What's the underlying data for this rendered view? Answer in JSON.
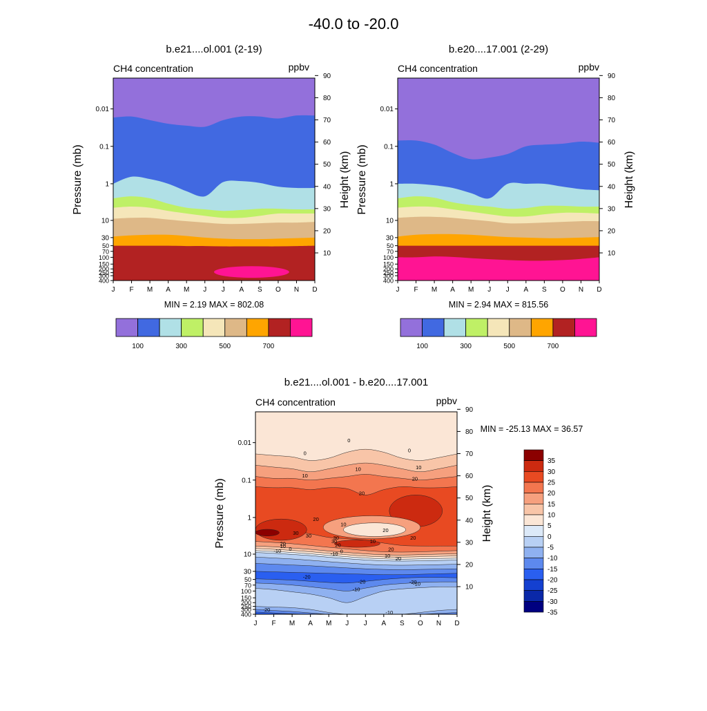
{
  "figure": {
    "title": "-40.0 to -20.0",
    "variable": "CH4 concentration",
    "units": "ppbv"
  },
  "chart_data": [
    {
      "type": "heatmap",
      "title": "b.e21....ol.001 (2-19)",
      "variable": "CH4 concentration",
      "units": "ppbv",
      "xlabel": "",
      "ylabel": "Pressure (mb)",
      "ylabel_right": "Height (km)",
      "months": [
        "J",
        "F",
        "M",
        "A",
        "M",
        "J",
        "J",
        "A",
        "S",
        "O",
        "N",
        "D"
      ],
      "pressure_ticks": [
        "0.01",
        "0.1",
        "1",
        "10",
        "30",
        "50",
        "70",
        "100",
        "150",
        "200",
        "250",
        "300",
        "400"
      ],
      "height_ticks": [
        "10",
        "20",
        "30",
        "40",
        "50",
        "60",
        "70",
        "80",
        "90"
      ],
      "ylim_mb": [
        400,
        0.0015
      ],
      "min_label": "MIN =   2.19  MAX = 802.08",
      "min": 2.19,
      "max": 802.08,
      "levels": [
        100,
        200,
        300,
        400,
        500,
        600,
        700,
        800
      ],
      "bands": [
        {
          "color": "#9370db",
          "lower_mb": [
            0.017,
            0.016,
            0.02,
            0.025,
            0.028,
            0.03,
            0.02,
            0.016,
            0.016,
            0.018,
            0.015,
            0.015
          ]
        },
        {
          "color": "#4169e1",
          "lower_mb": [
            1.0,
            0.65,
            0.75,
            1.0,
            1.6,
            2.2,
            0.9,
            0.85,
            0.95,
            1.2,
            1.3,
            1.3
          ]
        },
        {
          "color": "#b0e0e6",
          "lower_mb": [
            2.5,
            2.2,
            2.5,
            3.5,
            4.5,
            5.0,
            5.5,
            5.2,
            4.8,
            4.8,
            5.0,
            5.0
          ]
        },
        {
          "color": "#bff066",
          "lower_mb": [
            4.5,
            4.2,
            4.5,
            5.5,
            6.5,
            7.5,
            8.5,
            8.5,
            7.5,
            6.5,
            6.5,
            6.5
          ]
        },
        {
          "color": "#f5e6b9",
          "lower_mb": [
            9.0,
            8.5,
            8.5,
            9.5,
            10.5,
            11.5,
            12.5,
            12.5,
            12.0,
            11.5,
            11.5,
            11.0
          ]
        },
        {
          "color": "#deb887",
          "lower_mb": [
            28,
            26,
            25,
            25,
            27,
            30,
            32,
            33,
            33,
            32,
            31,
            30
          ]
        },
        {
          "color": "#ffa500",
          "lower_mb": [
            50,
            50,
            50,
            50,
            51,
            51,
            52,
            52,
            52,
            52,
            51,
            50
          ]
        },
        {
          "color": "#b22222",
          "lower_mb": [
            400,
            400,
            400,
            400,
            400,
            400,
            400,
            400,
            400,
            400,
            400,
            400
          ]
        }
      ],
      "cores": [
        {
          "color": "#ff1493",
          "month_from": 5.5,
          "month_to": 9.6,
          "center_mb": 240,
          "top_mb": 170,
          "bottom_mb": 340
        }
      ]
    },
    {
      "type": "heatmap",
      "title": "b.e20....17.001 (2-29)",
      "variable": "CH4 concentration",
      "units": "ppbv",
      "xlabel": "",
      "ylabel": "Pressure (mb)",
      "ylabel_right": "Height (km)",
      "months": [
        "J",
        "F",
        "M",
        "A",
        "M",
        "J",
        "J",
        "A",
        "S",
        "O",
        "N",
        "D"
      ],
      "pressure_ticks": [
        "0.01",
        "0.1",
        "1",
        "10",
        "30",
        "50",
        "70",
        "100",
        "150",
        "200",
        "250",
        "300",
        "400"
      ],
      "height_ticks": [
        "10",
        "20",
        "30",
        "40",
        "50",
        "60",
        "70",
        "80",
        "90"
      ],
      "ylim_mb": [
        400,
        0.0015
      ],
      "min_label": "MIN =   2.94  MAX = 815.56",
      "min": 2.94,
      "max": 815.56,
      "levels": [
        100,
        200,
        300,
        400,
        500,
        600,
        700,
        800
      ],
      "bands": [
        {
          "color": "#9370db",
          "lower_mb": [
            0.07,
            0.07,
            0.09,
            0.15,
            0.22,
            0.2,
            0.16,
            0.1,
            0.09,
            0.085,
            0.075,
            0.08
          ]
        },
        {
          "color": "#4169e1",
          "lower_mb": [
            1.0,
            1.0,
            1.1,
            1.3,
            1.8,
            2.5,
            1.0,
            1.0,
            1.0,
            1.2,
            1.4,
            1.5
          ]
        },
        {
          "color": "#b0e0e6",
          "lower_mb": [
            2.5,
            2.2,
            2.4,
            3.2,
            3.8,
            4.2,
            4.8,
            4.6,
            4.0,
            4.0,
            4.2,
            4.2
          ]
        },
        {
          "color": "#bff066",
          "lower_mb": [
            4.5,
            4.2,
            4.3,
            5.0,
            5.8,
            6.8,
            7.8,
            7.8,
            6.8,
            6.2,
            6.2,
            6.5
          ]
        },
        {
          "color": "#f5e6b9",
          "lower_mb": [
            8.5,
            8.0,
            8.0,
            8.5,
            9.5,
            10.5,
            12.0,
            12.0,
            11.5,
            11.0,
            10.5,
            10.5
          ]
        },
        {
          "color": "#deb887",
          "lower_mb": [
            28,
            25,
            24,
            24,
            25,
            27,
            29,
            30,
            31,
            31,
            30,
            29
          ]
        },
        {
          "color": "#ffa500",
          "lower_mb": [
            50,
            50,
            50,
            50,
            50,
            50,
            50,
            50,
            50,
            50,
            50,
            50
          ]
        },
        {
          "color": "#b22222",
          "lower_mb": [
            100,
            100,
            95,
            98,
            105,
            112,
            118,
            122,
            122,
            118,
            110,
            100
          ]
        },
        {
          "color": "#ff1493",
          "lower_mb": [
            400,
            400,
            400,
            400,
            400,
            400,
            400,
            400,
            400,
            400,
            400,
            400
          ]
        }
      ],
      "cores": []
    },
    {
      "type": "heatmap",
      "title": "b.e21....ol.001 - b.e20....17.001",
      "variable": "CH4 concentration",
      "units": "ppbv",
      "xlabel": "",
      "ylabel": "Pressure (mb)",
      "ylabel_right": "Height (km)",
      "months": [
        "J",
        "F",
        "M",
        "A",
        "M",
        "J",
        "J",
        "A",
        "S",
        "O",
        "N",
        "D"
      ],
      "pressure_ticks": [
        "0.01",
        "0.1",
        "1",
        "10",
        "30",
        "50",
        "70",
        "100",
        "150",
        "200",
        "250",
        "300",
        "400"
      ],
      "height_ticks": [
        "10",
        "20",
        "30",
        "40",
        "50",
        "60",
        "70",
        "80",
        "90"
      ],
      "ylim_mb": [
        400,
        0.0015
      ],
      "min_label": "MIN = -25.13  MAX =  36.57",
      "min": -25.13,
      "max": 36.57,
      "background_color": "#dce9f8",
      "bands": [
        {
          "color": "#fbe6d6",
          "lower_mb": [
            0.02,
            0.022,
            0.024,
            0.03,
            0.026,
            0.018,
            0.015,
            0.018,
            0.026,
            0.03,
            0.025,
            0.02
          ]
        },
        {
          "color": "#f8c5a8",
          "lower_mb": [
            0.04,
            0.045,
            0.05,
            0.06,
            0.05,
            0.04,
            0.035,
            0.04,
            0.05,
            0.06,
            0.05,
            0.04
          ]
        },
        {
          "color": "#f6a07e",
          "lower_mb": [
            0.08,
            0.09,
            0.09,
            0.1,
            0.09,
            0.08,
            0.07,
            0.08,
            0.09,
            0.1,
            0.09,
            0.08
          ]
        },
        {
          "color": "#f3764f",
          "lower_mb": [
            0.15,
            0.16,
            0.16,
            0.18,
            0.16,
            0.17,
            0.25,
            0.18,
            0.15,
            0.16,
            0.16,
            0.15
          ]
        },
        {
          "color": "#e84a22",
          "lower_mb": [
            2.0,
            2.2,
            2.4,
            2.8,
            3.5,
            3.8,
            4.2,
            5.0,
            5.8,
            6.0,
            6.0,
            6.0
          ]
        },
        {
          "color": "#f3764f",
          "lower_mb": [
            4.5,
            4.8,
            5.2,
            5.8,
            6.5,
            7.2,
            8.0,
            8.6,
            8.8,
            8.6,
            8.3,
            8.0
          ]
        },
        {
          "color": "#f6a07e",
          "lower_mb": [
            6.0,
            6.3,
            6.8,
            7.4,
            8.2,
            9.0,
            9.8,
            10.4,
            10.6,
            10.3,
            10.0,
            9.8
          ]
        },
        {
          "color": "#f8c5a8",
          "lower_mb": [
            7.0,
            7.4,
            7.9,
            8.6,
            9.5,
            10.4,
            11.3,
            11.9,
            12.1,
            11.8,
            11.5,
            11.2
          ]
        },
        {
          "color": "#fbe6d6",
          "lower_mb": [
            8.0,
            8.4,
            9.0,
            9.8,
            10.8,
            11.8,
            12.8,
            13.5,
            13.8,
            13.5,
            13.2,
            12.9
          ]
        },
        {
          "color": "#dce9f8",
          "lower_mb": [
            9.0,
            9.5,
            10.2,
            11.0,
            12.2,
            13.4,
            14.5,
            15.3,
            15.6,
            15.3,
            15.0,
            14.6
          ]
        },
        {
          "color": "#b8d0f4",
          "lower_mb": [
            12.0,
            12.8,
            13.6,
            14.8,
            16.2,
            17.6,
            19.0,
            20.0,
            20.3,
            20.0,
            19.6,
            19.0
          ]
        },
        {
          "color": "#8fb1f0",
          "lower_mb": [
            18.0,
            19.0,
            20.0,
            21.0,
            22.5,
            24.0,
            25.5,
            26.5,
            27.0,
            26.5,
            26.0,
            25.5
          ]
        },
        {
          "color": "#5d89ee",
          "lower_mb": [
            30,
            31,
            32,
            33,
            34,
            35,
            36,
            37,
            37,
            36,
            35,
            34
          ]
        },
        {
          "color": "#2a5ff0",
          "lower_mb": [
            48,
            50,
            52,
            56,
            60,
            62,
            56,
            50,
            46,
            44,
            44,
            45
          ]
        },
        {
          "color": "#5d89ee",
          "lower_mb": [
            62,
            65,
            70,
            78,
            88,
            100,
            84,
            70,
            64,
            60,
            58,
            58
          ]
        },
        {
          "color": "#8fb1f0",
          "lower_mb": [
            85,
            92,
            105,
            120,
            150,
            200,
            140,
            100,
            88,
            82,
            78,
            78
          ]
        },
        {
          "color": "#b8d0f4",
          "lower_mb": [
            250,
            260,
            270,
            300,
            360,
            400,
            400,
            400,
            400,
            360,
            320,
            300
          ]
        },
        {
          "color": "#8fb1f0",
          "lower_mb": [
            300,
            320,
            340,
            370,
            400,
            400,
            400,
            400,
            400,
            400,
            380,
            360
          ]
        },
        {
          "color": "#5d89ee",
          "lower_mb": [
            350,
            370,
            390,
            400,
            400,
            400,
            400,
            400,
            400,
            400,
            400,
            400
          ]
        },
        {
          "color": "#2a5ff0",
          "lower_mb": [
            400,
            400,
            400,
            400,
            400,
            400,
            400,
            400,
            400,
            400,
            400,
            400
          ]
        }
      ],
      "cores": [
        {
          "color": "#cc2a10",
          "month_from": 7.3,
          "month_to": 10.2,
          "center_mb": 0.7,
          "top_mb": 0.25,
          "bottom_mb": 1.8
        },
        {
          "color": "#cc2a10",
          "month_from": 0.0,
          "month_to": 2.8,
          "center_mb": 2.2,
          "top_mb": 1.1,
          "bottom_mb": 4.2
        },
        {
          "color": "#8b0000",
          "month_from": 0.0,
          "month_to": 1.3,
          "center_mb": 2.6,
          "top_mb": 2.1,
          "bottom_mb": 3.2
        },
        {
          "color": "#f6a07e",
          "month_from": 3.7,
          "month_to": 9.0,
          "center_mb": 1.9,
          "top_mb": 0.9,
          "bottom_mb": 3.8
        },
        {
          "color": "#fbe6d6",
          "month_from": 4.8,
          "month_to": 8.2,
          "center_mb": 2.3,
          "top_mb": 1.4,
          "bottom_mb": 3.3
        },
        {
          "color": "#cc2a10",
          "month_from": 4.3,
          "month_to": 6.8,
          "center_mb": 5.2,
          "top_mb": 4.1,
          "bottom_mb": 6.5
        }
      ],
      "contour_labels": [
        {
          "text": "0",
          "month": 5.1,
          "mb": 0.0085
        },
        {
          "text": "0",
          "month": 8.4,
          "mb": 0.016
        },
        {
          "text": "0",
          "month": 2.7,
          "mb": 0.019
        },
        {
          "text": "10",
          "month": 2.7,
          "mb": 0.075
        },
        {
          "text": "10",
          "month": 5.6,
          "mb": 0.05
        },
        {
          "text": "10",
          "month": 8.9,
          "mb": 0.045
        },
        {
          "text": "20",
          "month": 8.7,
          "mb": 0.09
        },
        {
          "text": "20",
          "month": 5.8,
          "mb": 0.22
        },
        {
          "text": "20",
          "month": 3.3,
          "mb": 1.1
        },
        {
          "text": "10",
          "month": 4.8,
          "mb": 1.5
        },
        {
          "text": "20",
          "month": 7.1,
          "mb": 2.2
        },
        {
          "text": "20",
          "month": 8.6,
          "mb": 3.5
        },
        {
          "text": "30",
          "month": 2.2,
          "mb": 2.6
        },
        {
          "text": "30",
          "month": 2.9,
          "mb": 3.1
        },
        {
          "text": "30",
          "month": 4.4,
          "mb": 3.5
        },
        {
          "text": "10",
          "month": 6.4,
          "mb": 4.4
        },
        {
          "text": "20",
          "month": 1.5,
          "mb": 5.1
        },
        {
          "text": "10",
          "month": 1.5,
          "mb": 6.0
        },
        {
          "text": "0",
          "month": 1.9,
          "mb": 7.0
        },
        {
          "text": "-10",
          "month": 1.2,
          "mb": 8.0
        },
        {
          "text": "20",
          "month": 4.5,
          "mb": 5.6
        },
        {
          "text": "30",
          "month": 4.3,
          "mb": 4.4
        },
        {
          "text": "20",
          "month": 7.4,
          "mb": 7.2
        },
        {
          "text": "10",
          "month": 7.2,
          "mb": 11.0
        },
        {
          "text": "0",
          "month": 4.7,
          "mb": 8.2
        },
        {
          "text": "-10",
          "month": 4.3,
          "mb": 9.5
        },
        {
          "text": "20",
          "month": 7.8,
          "mb": 13.0
        },
        {
          "text": "-20",
          "month": 2.8,
          "mb": 42
        },
        {
          "text": "-20",
          "month": 5.8,
          "mb": 56
        },
        {
          "text": "-20",
          "month": 8.6,
          "mb": 57
        },
        {
          "text": "-10",
          "month": 5.5,
          "mb": 88
        },
        {
          "text": "-10",
          "month": 8.8,
          "mb": 64
        },
        {
          "text": "-20",
          "month": 0.6,
          "mb": 300
        },
        {
          "text": "-10",
          "month": 7.3,
          "mb": 350
        }
      ],
      "legend": {
        "levels": [
          35,
          30,
          25,
          20,
          15,
          10,
          5,
          0,
          -5,
          -10,
          -15,
          -20,
          -25,
          -30,
          -35
        ],
        "colors": [
          "#8b0000",
          "#cc2a10",
          "#e84a22",
          "#f3764f",
          "#f6a07e",
          "#f8c5a8",
          "#fbe6d6",
          "#dce9f8",
          "#b8d0f4",
          "#8fb1f0",
          "#5d89ee",
          "#2a5ff0",
          "#1440d0",
          "#0a28a8",
          "#000080"
        ]
      }
    }
  ],
  "colorbars": [
    {
      "colors": [
        "#9370db",
        "#4169e1",
        "#b0e0e6",
        "#bff066",
        "#f5e6b9",
        "#deb887",
        "#ffa500",
        "#b22222",
        "#ff1493"
      ],
      "labels": [
        "100",
        "300",
        "500",
        "700"
      ]
    },
    {
      "colors": [
        "#9370db",
        "#4169e1",
        "#b0e0e6",
        "#bff066",
        "#f5e6b9",
        "#deb887",
        "#ffa500",
        "#b22222",
        "#ff1493"
      ],
      "labels": [
        "100",
        "300",
        "500",
        "700"
      ]
    }
  ]
}
